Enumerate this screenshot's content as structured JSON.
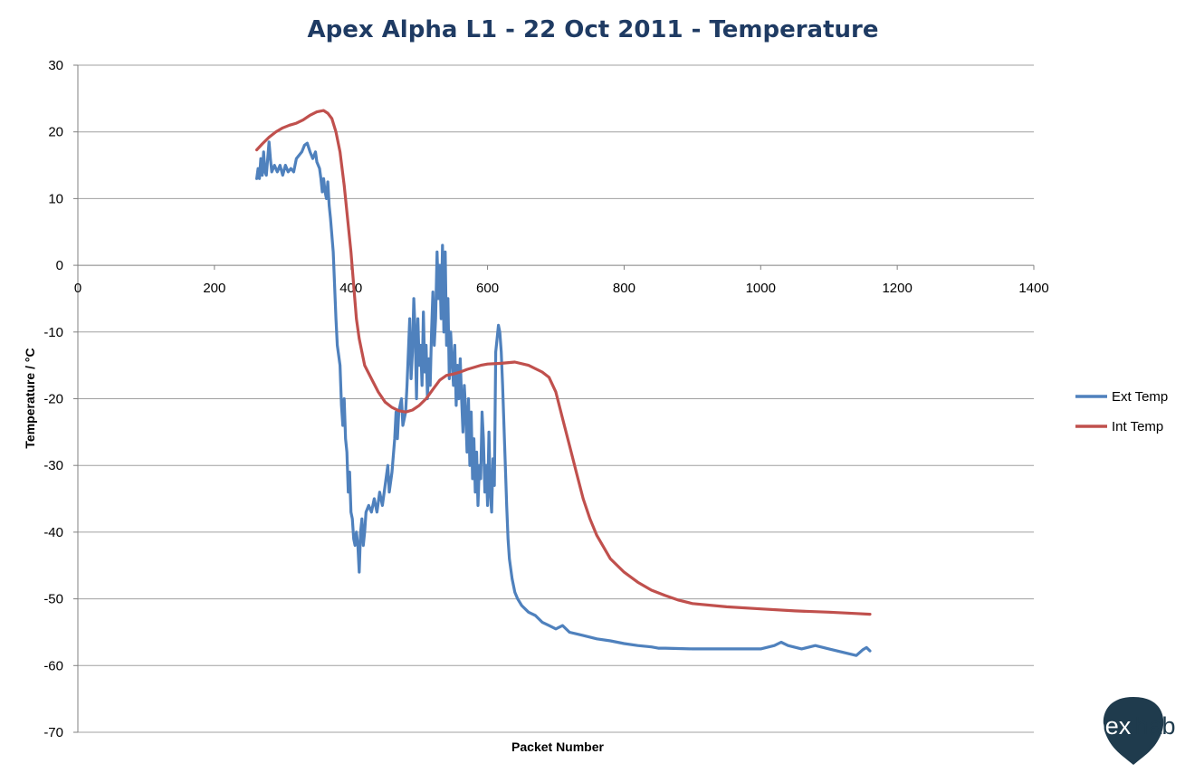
{
  "chart_data": {
    "type": "line",
    "title": "Apex Alpha L1 - 22 Oct 2011 - Temperature",
    "xlabel": "Packet Number",
    "ylabel": "Temperature / °C",
    "xlim": [
      0,
      1400
    ],
    "ylim": [
      -70,
      30
    ],
    "x_ticks": [
      0,
      200,
      400,
      600,
      800,
      1000,
      1200,
      1400
    ],
    "y_ticks": [
      30,
      20,
      10,
      0,
      -10,
      -20,
      -30,
      -40,
      -50,
      -60,
      -70
    ],
    "grid": "horizontal",
    "legend_position": "right",
    "series": [
      {
        "name": "Ext Temp",
        "color": "#4f81bd",
        "points": [
          [
            262,
            13
          ],
          [
            264,
            14.5
          ],
          [
            266,
            13
          ],
          [
            268,
            16
          ],
          [
            270,
            13.5
          ],
          [
            272,
            17
          ],
          [
            274,
            14
          ],
          [
            276,
            13.5
          ],
          [
            278,
            16
          ],
          [
            280,
            18.5
          ],
          [
            282,
            16
          ],
          [
            284,
            14
          ],
          [
            288,
            15
          ],
          [
            292,
            14
          ],
          [
            296,
            15
          ],
          [
            300,
            13.5
          ],
          [
            304,
            15
          ],
          [
            308,
            14
          ],
          [
            312,
            14.5
          ],
          [
            316,
            14
          ],
          [
            320,
            16
          ],
          [
            324,
            16.5
          ],
          [
            328,
            17
          ],
          [
            332,
            18
          ],
          [
            336,
            18.3
          ],
          [
            340,
            17
          ],
          [
            344,
            16
          ],
          [
            348,
            17
          ],
          [
            350,
            15.5
          ],
          [
            354,
            14.5
          ],
          [
            356,
            13
          ],
          [
            358,
            11
          ],
          [
            360,
            13
          ],
          [
            362,
            11
          ],
          [
            364,
            10
          ],
          [
            366,
            12.5
          ],
          [
            368,
            9
          ],
          [
            370,
            7
          ],
          [
            374,
            2
          ],
          [
            376,
            -3
          ],
          [
            378,
            -8
          ],
          [
            380,
            -12
          ],
          [
            384,
            -15
          ],
          [
            386,
            -21
          ],
          [
            388,
            -24
          ],
          [
            390,
            -20
          ],
          [
            392,
            -26
          ],
          [
            394,
            -28
          ],
          [
            396,
            -34
          ],
          [
            398,
            -31
          ],
          [
            400,
            -37
          ],
          [
            402,
            -38
          ],
          [
            404,
            -41
          ],
          [
            406,
            -42
          ],
          [
            408,
            -40
          ],
          [
            410,
            -42
          ],
          [
            412,
            -46
          ],
          [
            414,
            -40
          ],
          [
            416,
            -38
          ],
          [
            418,
            -42
          ],
          [
            420,
            -40
          ],
          [
            422,
            -37
          ],
          [
            426,
            -36
          ],
          [
            430,
            -37
          ],
          [
            434,
            -35
          ],
          [
            438,
            -37
          ],
          [
            442,
            -34
          ],
          [
            446,
            -36
          ],
          [
            450,
            -33
          ],
          [
            454,
            -30
          ],
          [
            456,
            -34
          ],
          [
            460,
            -31
          ],
          [
            464,
            -26
          ],
          [
            466,
            -22
          ],
          [
            468,
            -26
          ],
          [
            470,
            -22
          ],
          [
            474,
            -20
          ],
          [
            476,
            -24
          ],
          [
            480,
            -22
          ],
          [
            482,
            -18
          ],
          [
            484,
            -13
          ],
          [
            486,
            -8
          ],
          [
            488,
            -17
          ],
          [
            490,
            -13
          ],
          [
            492,
            -5
          ],
          [
            494,
            -10
          ],
          [
            496,
            -20
          ],
          [
            498,
            -8
          ],
          [
            500,
            -15
          ],
          [
            502,
            -12
          ],
          [
            504,
            -18
          ],
          [
            506,
            -7
          ],
          [
            508,
            -16
          ],
          [
            510,
            -12
          ],
          [
            512,
            -20
          ],
          [
            514,
            -14
          ],
          [
            516,
            -18
          ],
          [
            518,
            -10
          ],
          [
            520,
            -4
          ],
          [
            522,
            -12
          ],
          [
            524,
            -8
          ],
          [
            526,
            2
          ],
          [
            528,
            -5
          ],
          [
            530,
            0
          ],
          [
            532,
            -8
          ],
          [
            534,
            3
          ],
          [
            536,
            -10
          ],
          [
            538,
            2
          ],
          [
            540,
            -12
          ],
          [
            542,
            -5
          ],
          [
            544,
            -17
          ],
          [
            546,
            -10
          ],
          [
            548,
            -14
          ],
          [
            550,
            -18
          ],
          [
            552,
            -12
          ],
          [
            554,
            -21
          ],
          [
            556,
            -15
          ],
          [
            558,
            -20
          ],
          [
            560,
            -14
          ],
          [
            562,
            -20
          ],
          [
            564,
            -25
          ],
          [
            566,
            -18
          ],
          [
            568,
            -22
          ],
          [
            570,
            -28
          ],
          [
            572,
            -20
          ],
          [
            574,
            -30
          ],
          [
            576,
            -22
          ],
          [
            578,
            -32
          ],
          [
            580,
            -26
          ],
          [
            582,
            -34
          ],
          [
            584,
            -28
          ],
          [
            586,
            -36
          ],
          [
            588,
            -30
          ],
          [
            590,
            -32
          ],
          [
            592,
            -22
          ],
          [
            594,
            -26
          ],
          [
            596,
            -34
          ],
          [
            598,
            -30
          ],
          [
            600,
            -36
          ],
          [
            602,
            -25
          ],
          [
            604,
            -34
          ],
          [
            606,
            -37
          ],
          [
            608,
            -29
          ],
          [
            610,
            -33
          ],
          [
            612,
            -13
          ],
          [
            614,
            -11
          ],
          [
            616,
            -9
          ],
          [
            618,
            -10
          ],
          [
            620,
            -13
          ],
          [
            622,
            -18
          ],
          [
            624,
            -24
          ],
          [
            626,
            -30
          ],
          [
            628,
            -36
          ],
          [
            630,
            -41
          ],
          [
            632,
            -44
          ],
          [
            636,
            -47
          ],
          [
            640,
            -49
          ],
          [
            644,
            -50
          ],
          [
            650,
            -51
          ],
          [
            660,
            -52
          ],
          [
            670,
            -52.5
          ],
          [
            680,
            -53.5
          ],
          [
            690,
            -54
          ],
          [
            700,
            -54.5
          ],
          [
            710,
            -54
          ],
          [
            720,
            -55
          ],
          [
            740,
            -55.5
          ],
          [
            760,
            -56
          ],
          [
            780,
            -56.3
          ],
          [
            800,
            -56.7
          ],
          [
            820,
            -57
          ],
          [
            840,
            -57.2
          ],
          [
            850,
            -57.4
          ],
          [
            860,
            -57.4
          ],
          [
            900,
            -57.5
          ],
          [
            950,
            -57.5
          ],
          [
            1000,
            -57.5
          ],
          [
            1020,
            -57
          ],
          [
            1030,
            -56.5
          ],
          [
            1040,
            -57
          ],
          [
            1060,
            -57.5
          ],
          [
            1080,
            -57
          ],
          [
            1100,
            -57.5
          ],
          [
            1120,
            -58
          ],
          [
            1140,
            -58.5
          ],
          [
            1150,
            -57.6
          ],
          [
            1155,
            -57.3
          ],
          [
            1160,
            -57.8
          ]
        ]
      },
      {
        "name": "Int Temp",
        "color": "#c0504d",
        "points": [
          [
            262,
            17.3
          ],
          [
            270,
            18.2
          ],
          [
            280,
            19.2
          ],
          [
            290,
            20
          ],
          [
            300,
            20.6
          ],
          [
            310,
            21
          ],
          [
            320,
            21.3
          ],
          [
            330,
            21.8
          ],
          [
            340,
            22.5
          ],
          [
            350,
            23
          ],
          [
            360,
            23.2
          ],
          [
            366,
            22.8
          ],
          [
            372,
            22
          ],
          [
            378,
            20
          ],
          [
            384,
            17
          ],
          [
            390,
            12
          ],
          [
            396,
            6
          ],
          [
            400,
            2
          ],
          [
            404,
            -3
          ],
          [
            408,
            -8
          ],
          [
            412,
            -11
          ],
          [
            416,
            -13
          ],
          [
            420,
            -15
          ],
          [
            430,
            -17
          ],
          [
            440,
            -19
          ],
          [
            450,
            -20.5
          ],
          [
            460,
            -21.3
          ],
          [
            470,
            -21.8
          ],
          [
            480,
            -22
          ],
          [
            490,
            -21.7
          ],
          [
            500,
            -21
          ],
          [
            510,
            -20
          ],
          [
            520,
            -18.6
          ],
          [
            530,
            -17.2
          ],
          [
            540,
            -16.5
          ],
          [
            550,
            -16.3
          ],
          [
            560,
            -16
          ],
          [
            570,
            -15.6
          ],
          [
            580,
            -15.3
          ],
          [
            590,
            -15
          ],
          [
            600,
            -14.8
          ],
          [
            620,
            -14.7
          ],
          [
            640,
            -14.5
          ],
          [
            660,
            -15
          ],
          [
            680,
            -16
          ],
          [
            690,
            -16.8
          ],
          [
            700,
            -19
          ],
          [
            710,
            -23
          ],
          [
            720,
            -27
          ],
          [
            730,
            -31
          ],
          [
            740,
            -35
          ],
          [
            750,
            -38
          ],
          [
            760,
            -40.5
          ],
          [
            780,
            -44
          ],
          [
            800,
            -46
          ],
          [
            820,
            -47.5
          ],
          [
            840,
            -48.7
          ],
          [
            860,
            -49.5
          ],
          [
            880,
            -50.2
          ],
          [
            900,
            -50.7
          ],
          [
            950,
            -51.2
          ],
          [
            1000,
            -51.5
          ],
          [
            1050,
            -51.8
          ],
          [
            1100,
            -52
          ],
          [
            1140,
            -52.2
          ],
          [
            1160,
            -52.3
          ]
        ]
      }
    ]
  },
  "logo": {
    "part1": "apex",
    "part2": "hab",
    "accent": "#1f3b4d"
  }
}
